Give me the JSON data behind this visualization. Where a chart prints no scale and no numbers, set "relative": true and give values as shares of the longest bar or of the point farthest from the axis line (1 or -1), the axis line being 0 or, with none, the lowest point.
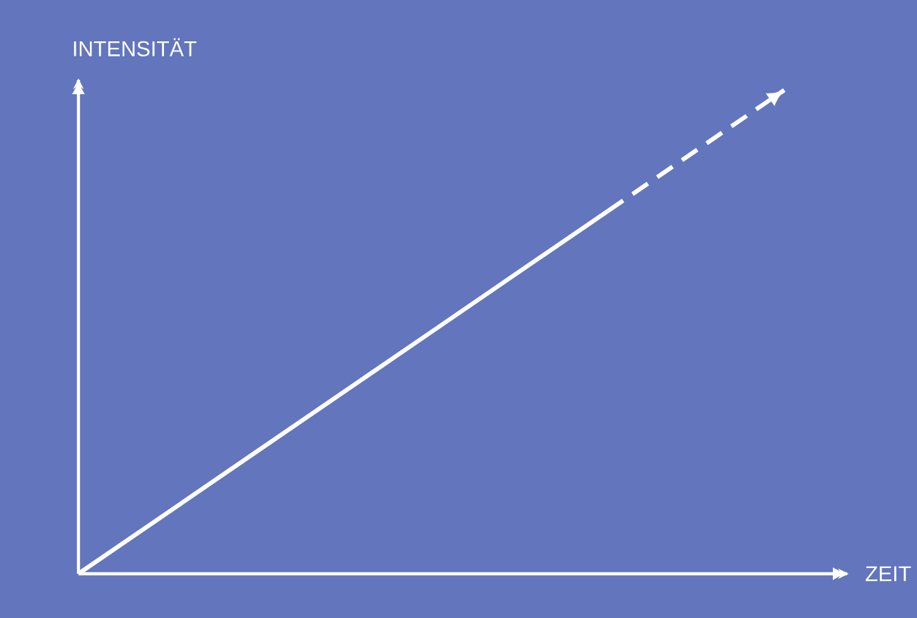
{
  "chart_data": {
    "type": "line",
    "relative": true,
    "xlabel": "ZEIT",
    "ylabel": "INTENSITÄT",
    "categories": [
      null,
      null,
      null,
      null,
      null
    ],
    "series": [
      {
        "color": "#ffffff",
        "line_style": "solid",
        "values": [
          0,
          0.25,
          0.5,
          0.75,
          null
        ]
      },
      {
        "color": "#ffffff",
        "line_style": "dashed",
        "values": [
          null,
          null,
          null,
          0.75,
          1
        ]
      }
    ]
  }
}
